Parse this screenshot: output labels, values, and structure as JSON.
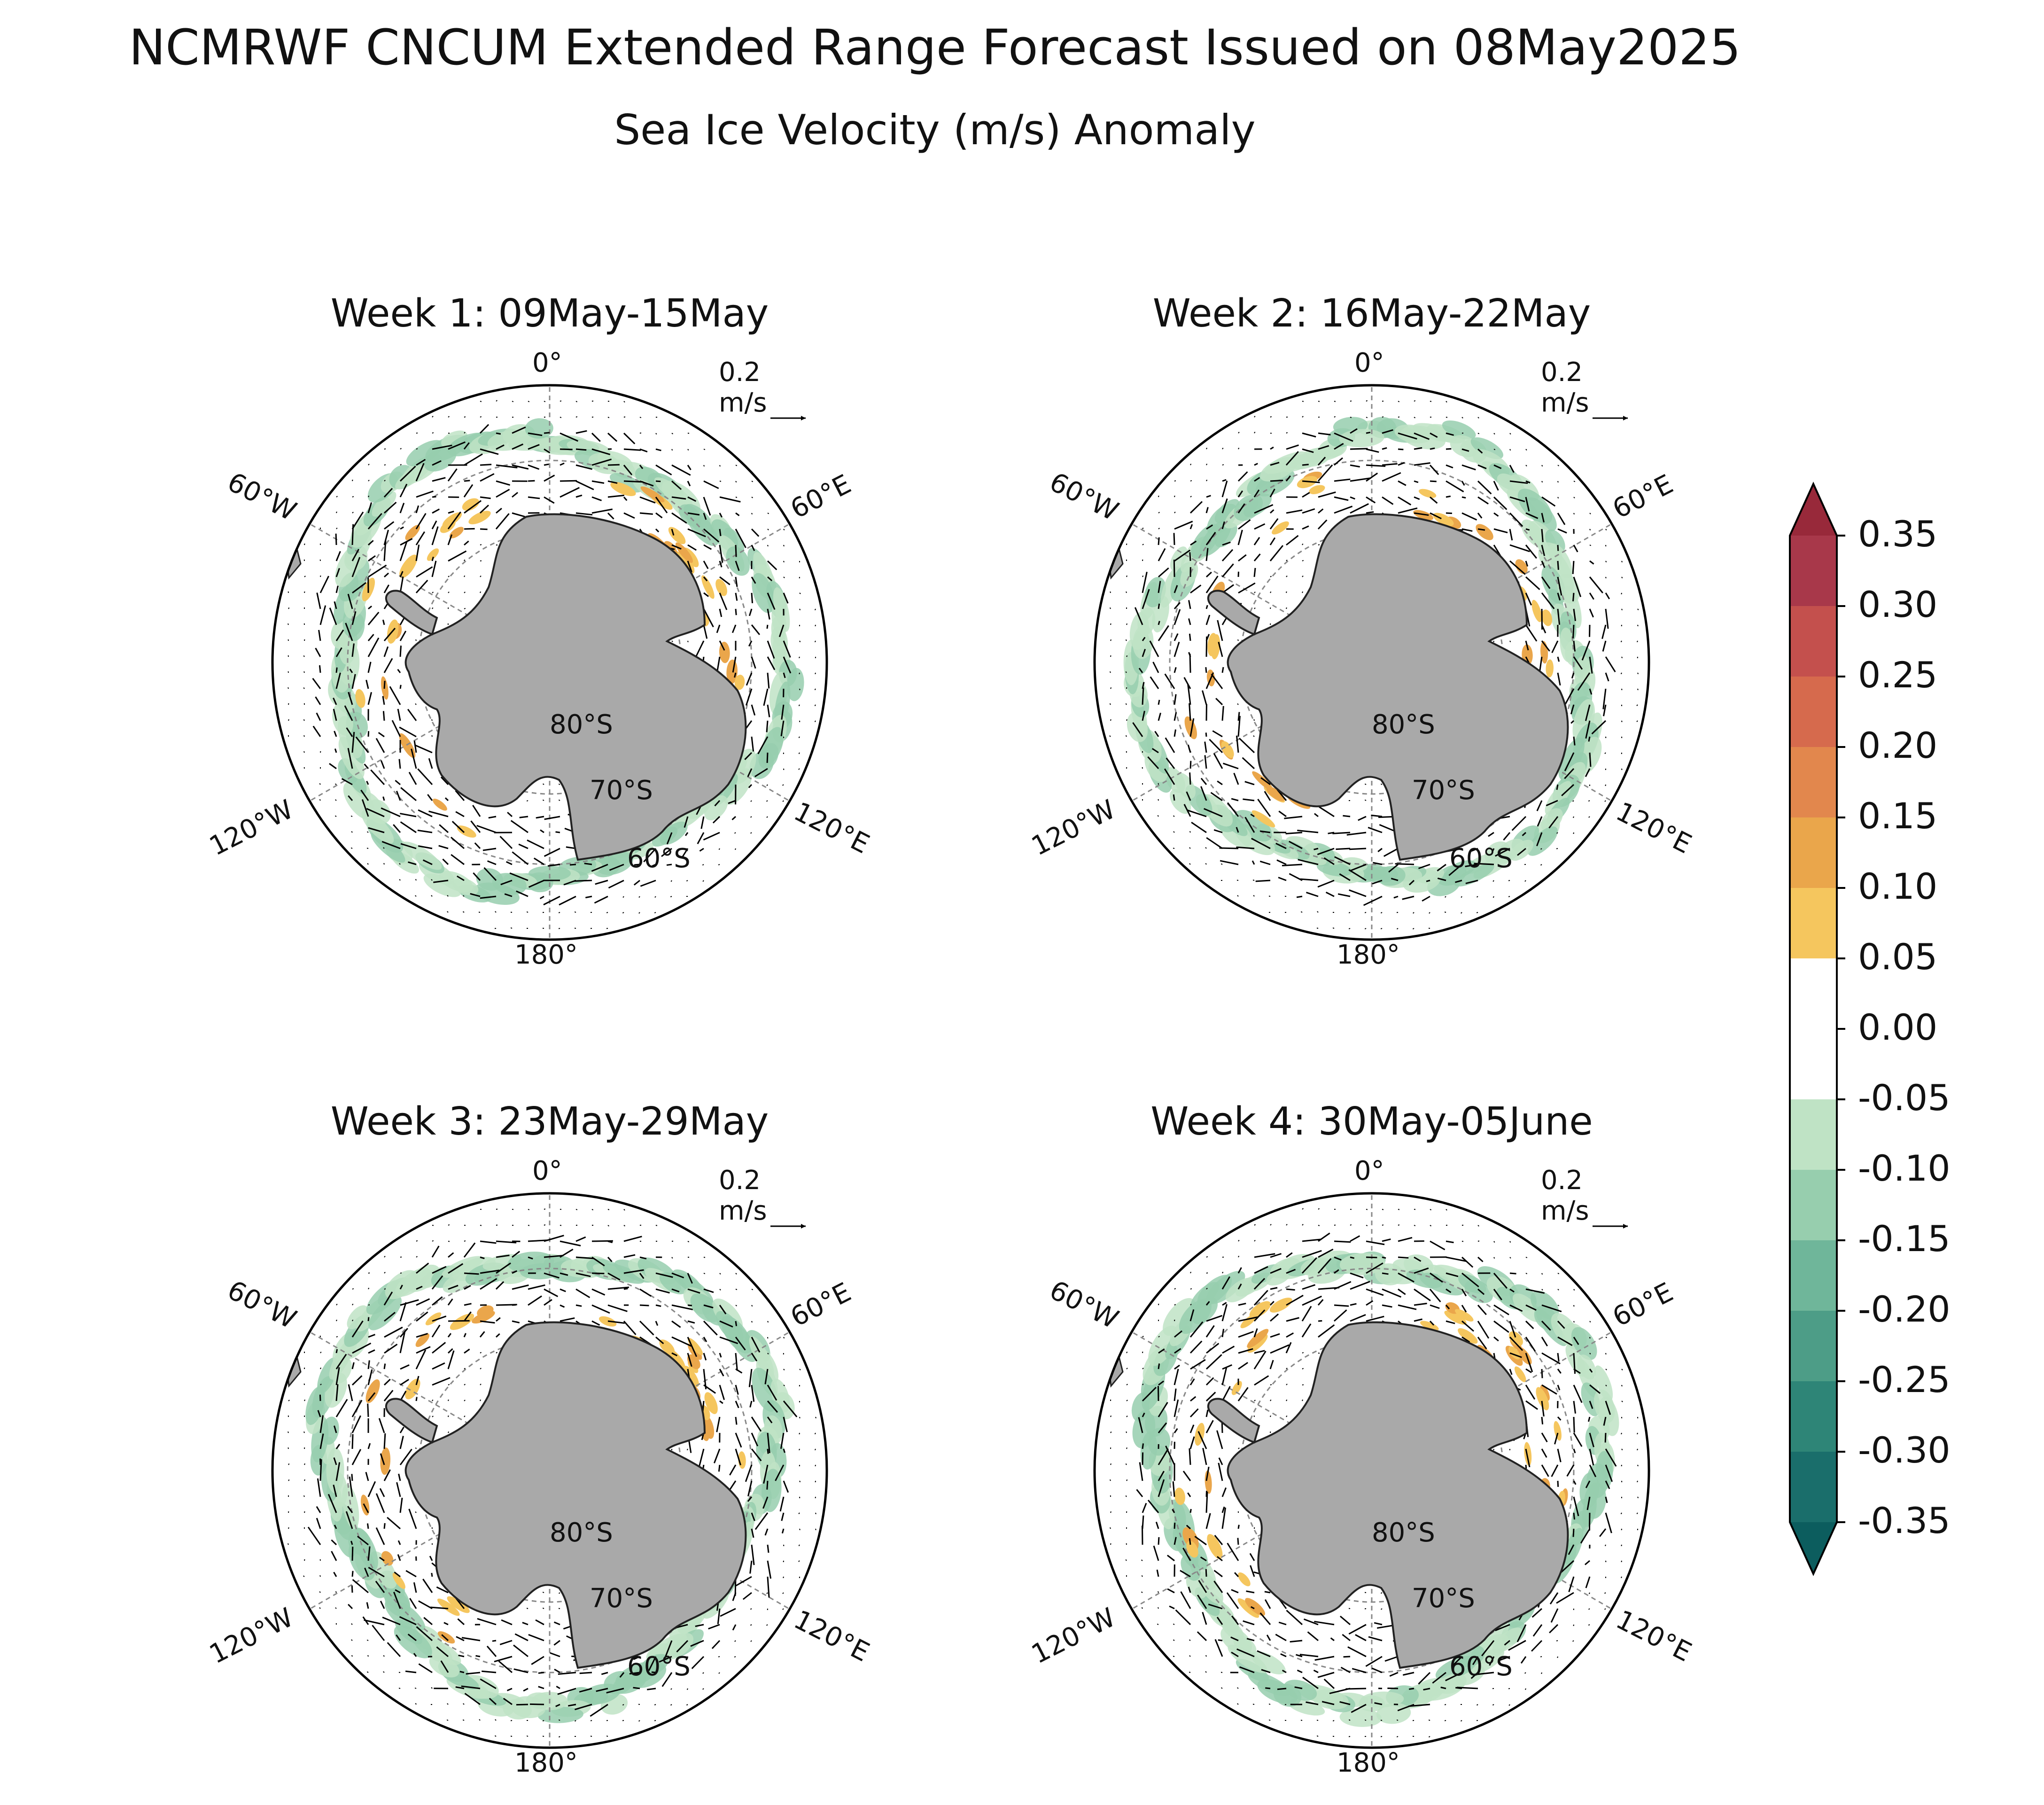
{
  "title": "NCMRWF CNCUM Extended Range Forecast Issued on 08May2025",
  "subtitle": "Sea Ice Velocity (m/s) Anomaly",
  "reference_vector_label": "0.2 m/s",
  "map_labels": {
    "lon_0": "0°",
    "lon_60w": "60°W",
    "lon_60e": "60°E",
    "lon_120w": "120°W",
    "lon_120e": "120°E",
    "lon_180": "180°",
    "lat_80": "80°S",
    "lat_70": "70°S",
    "lat_60": "60°S"
  },
  "panels": [
    {
      "title": "Week 1: 09May-15May",
      "seed": 3
    },
    {
      "title": "Week 2: 16May-22May",
      "seed": 7
    },
    {
      "title": "Week 3: 23May-29May",
      "seed": 11
    },
    {
      "title": "Week 4: 30May-05June",
      "seed": 17
    }
  ],
  "colorbar": {
    "ticks": [
      "0.35",
      "0.30",
      "0.25",
      "0.20",
      "0.15",
      "0.10",
      "0.05",
      "0.00",
      "-0.05",
      "-0.10",
      "-0.15",
      "-0.20",
      "-0.25",
      "-0.30",
      "-0.35"
    ],
    "colors": [
      "#a8384a",
      "#c4504d",
      "#d66a4d",
      "#e2874d",
      "#eaa64b",
      "#f5c65e",
      "#ffffff",
      "#ffffff",
      "#bfe3c5",
      "#97ceae",
      "#6fb69a",
      "#4d9d87",
      "#2e8577",
      "#1a6e6b"
    ],
    "over_color": "#98293a",
    "under_color": "#0c5d5e"
  },
  "land_color": "#a9a9a9"
}
